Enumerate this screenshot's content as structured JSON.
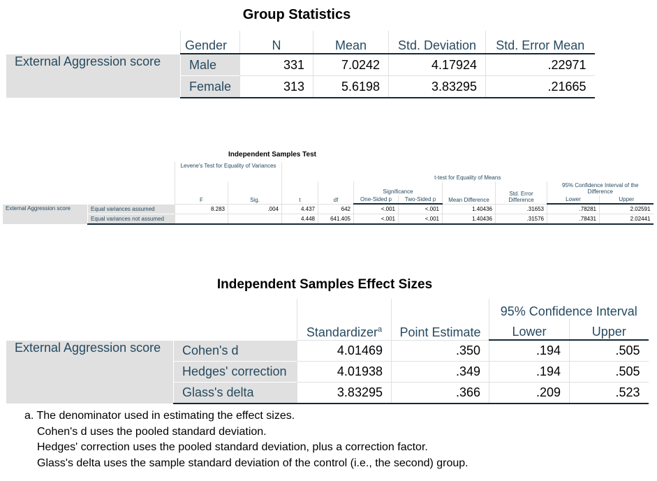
{
  "group_statistics": {
    "title": "Group Statistics",
    "headers": [
      "Gender",
      "N",
      "Mean",
      "Std. Deviation",
      "Std. Error Mean"
    ],
    "row_label": "External Aggression score",
    "rows": [
      {
        "label": "Male",
        "values": [
          "331",
          "7.0242",
          "4.17924",
          ".22971"
        ]
      },
      {
        "label": "Female",
        "values": [
          "313",
          "5.6198",
          "3.83295",
          ".21665"
        ]
      }
    ]
  },
  "independent_samples_test": {
    "title": "Independent Samples Test",
    "levene": "Levene's Test for Equality of Variances",
    "ttest": "t-test for Equality of Means",
    "significance": "Significance",
    "ci": "95% Confidence Interval of the Difference",
    "columns": [
      "F",
      "Sig.",
      "t",
      "df",
      "One-Sided p",
      "Two-Sided p",
      "Mean Difference",
      "Std. Error Difference",
      "Lower",
      "Upper"
    ],
    "row_label": "External Aggression score",
    "rows": [
      {
        "label": "Equal variances assumed",
        "values": [
          "8.283",
          ".004",
          "4.437",
          "642",
          "<.001",
          "<.001",
          "1.40436",
          ".31653",
          ".78281",
          "2.02591"
        ]
      },
      {
        "label": "Equal variances not assumed",
        "values": [
          null,
          null,
          "4.448",
          "641.405",
          "<.001",
          "<.001",
          "1.40436",
          ".31576",
          ".78431",
          "2.02441"
        ]
      }
    ]
  },
  "effect_sizes": {
    "title": "Independent Samples Effect Sizes",
    "standardizer": "Standardizer",
    "standardizer_note": "a",
    "point_estimate": "Point Estimate",
    "ci": "95% Confidence Interval",
    "lower": "Lower",
    "upper": "Upper",
    "row_label": "External Aggression score",
    "rows": [
      {
        "label": "Cohen's d",
        "values": [
          "4.01469",
          ".350",
          ".194",
          ".505"
        ]
      },
      {
        "label": "Hedges' correction",
        "values": [
          "4.01938",
          ".349",
          ".194",
          ".505"
        ]
      },
      {
        "label": "Glass's delta",
        "values": [
          "3.83295",
          ".366",
          ".209",
          ".523"
        ]
      }
    ],
    "footnotes": [
      "a. The denominator used in estimating the effect sizes.",
      "Cohen's d uses the pooled standard deviation.",
      "Hedges' correction uses the pooled standard deviation, plus a correction factor.",
      "Glass's delta uses the sample standard deviation of the control (i.e., the second) group."
    ]
  }
}
